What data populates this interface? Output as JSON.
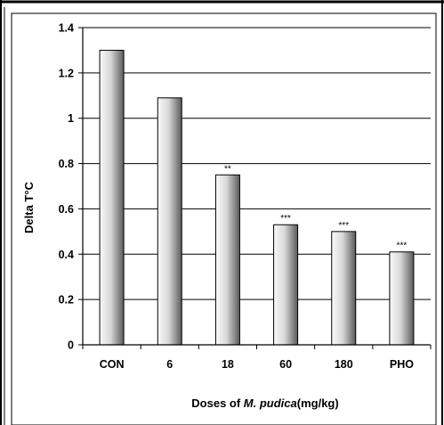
{
  "chart_data": {
    "type": "bar",
    "categories": [
      "CON",
      "6",
      "18",
      "60",
      "180",
      "PHO"
    ],
    "values": [
      1.3,
      1.09,
      0.75,
      0.53,
      0.5,
      0.41
    ],
    "annotations": [
      "",
      "",
      "**",
      "***",
      "***",
      "***"
    ],
    "ylabel": "Delta T°C",
    "xlabel_parts": [
      "Doses of ",
      "M. pudica",
      "(mg/kg)"
    ],
    "ylim": [
      0,
      1.4
    ],
    "yticks": [
      "0",
      "0.2",
      "0.4",
      "0.6",
      "0.8",
      "1",
      "1.2",
      "1.4"
    ],
    "grid": true,
    "colors": {
      "bar_dark": "#5a5a5a",
      "bar_light": "#ffffff",
      "gridline": "#000000",
      "border": "#000000"
    }
  }
}
